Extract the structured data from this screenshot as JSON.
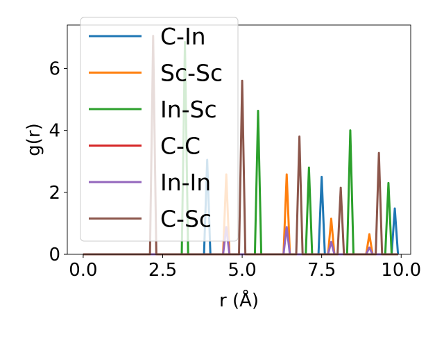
{
  "chart_data": {
    "type": "line",
    "title": "",
    "xlabel": "r (Å)",
    "ylabel": "g(r)",
    "xlim": [
      -0.5,
      10.3
    ],
    "ylim": [
      0,
      7.4
    ],
    "x_ticks": [
      0.0,
      2.5,
      5.0,
      7.5,
      10.0
    ],
    "x_tick_labels": [
      "0.0",
      "2.5",
      "5.0",
      "7.5",
      "10.0"
    ],
    "y_ticks": [
      0,
      2,
      4,
      6
    ],
    "y_tick_labels": [
      "0",
      "2",
      "4",
      "6"
    ],
    "grid": false,
    "legend_position": "upper-left",
    "x_range": [
      0.0,
      9.9
    ],
    "series": [
      {
        "name": "C-In",
        "color": "#1f77b4",
        "peaks": [
          [
            3.9,
            3.05
          ],
          [
            7.5,
            2.5
          ],
          [
            9.8,
            1.48
          ]
        ]
      },
      {
        "name": "Sc-Sc",
        "color": "#ff7f0e",
        "peaks": [
          [
            4.5,
            2.58
          ],
          [
            6.4,
            2.58
          ],
          [
            7.8,
            1.15
          ],
          [
            9.0,
            0.65
          ]
        ]
      },
      {
        "name": "In-Sc",
        "color": "#2ca02c",
        "peaks": [
          [
            3.2,
            6.85
          ],
          [
            5.5,
            4.63
          ],
          [
            7.1,
            2.8
          ],
          [
            8.4,
            4.0
          ],
          [
            9.6,
            2.3
          ]
        ]
      },
      {
        "name": "C-C",
        "color": "#d62728",
        "peaks": []
      },
      {
        "name": "In-In",
        "color": "#9467bd",
        "peaks": [
          [
            4.5,
            0.88
          ],
          [
            6.4,
            0.88
          ],
          [
            7.8,
            0.4
          ],
          [
            9.0,
            0.22
          ]
        ]
      },
      {
        "name": "C-Sc",
        "color": "#8c564b",
        "peaks": [
          [
            2.2,
            7.05
          ],
          [
            5.0,
            5.6
          ],
          [
            6.8,
            3.8
          ],
          [
            8.1,
            2.15
          ],
          [
            9.3,
            3.27
          ]
        ]
      }
    ]
  }
}
